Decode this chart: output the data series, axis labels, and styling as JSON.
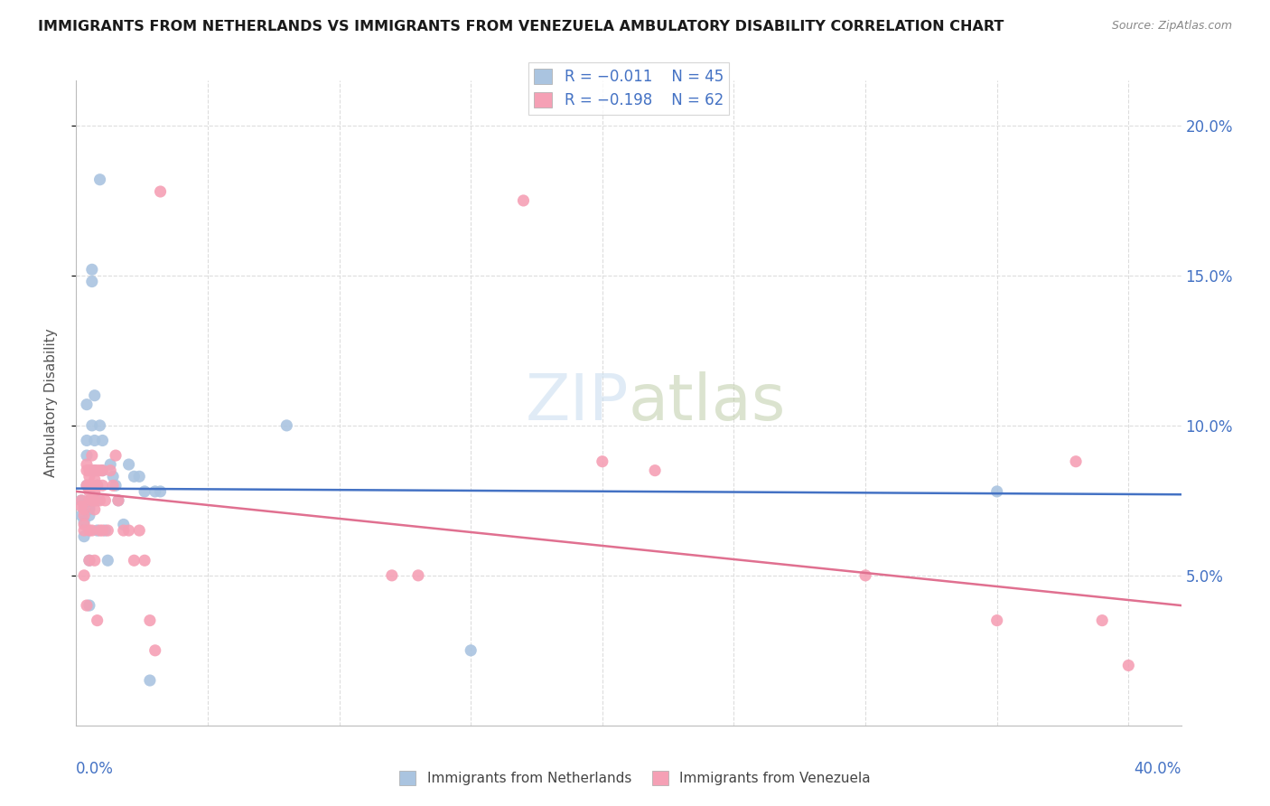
{
  "title": "IMMIGRANTS FROM NETHERLANDS VS IMMIGRANTS FROM VENEZUELA AMBULATORY DISABILITY CORRELATION CHART",
  "source": "Source: ZipAtlas.com",
  "ylabel": "Ambulatory Disability",
  "xlim": [
    0.0,
    0.42
  ],
  "ylim": [
    0.0,
    0.215
  ],
  "yticks": [
    0.05,
    0.1,
    0.15,
    0.2
  ],
  "ytick_labels": [
    "5.0%",
    "10.0%",
    "15.0%",
    "20.0%"
  ],
  "color_netherlands": "#aac4e0",
  "color_venezuela": "#f5a0b5",
  "color_netherlands_line": "#4472c4",
  "color_venezuela_line": "#e07090",
  "color_right_axis": "#4472c4",
  "color_title": "#1a1a1a",
  "background_color": "#ffffff",
  "grid_color": "#dddddd",
  "netherlands_x": [
    0.002,
    0.002,
    0.003,
    0.003,
    0.003,
    0.004,
    0.004,
    0.004,
    0.004,
    0.005,
    0.005,
    0.005,
    0.005,
    0.005,
    0.005,
    0.006,
    0.006,
    0.006,
    0.007,
    0.007,
    0.007,
    0.008,
    0.008,
    0.008,
    0.009,
    0.009,
    0.01,
    0.01,
    0.011,
    0.012,
    0.013,
    0.014,
    0.015,
    0.016,
    0.018,
    0.02,
    0.022,
    0.024,
    0.026,
    0.028,
    0.03,
    0.032,
    0.08,
    0.15,
    0.35
  ],
  "netherlands_y": [
    0.07,
    0.075,
    0.073,
    0.068,
    0.063,
    0.107,
    0.095,
    0.09,
    0.08,
    0.075,
    0.073,
    0.072,
    0.07,
    0.055,
    0.04,
    0.152,
    0.148,
    0.1,
    0.11,
    0.095,
    0.085,
    0.08,
    0.075,
    0.065,
    0.182,
    0.1,
    0.095,
    0.085,
    0.065,
    0.055,
    0.087,
    0.083,
    0.08,
    0.075,
    0.067,
    0.087,
    0.083,
    0.083,
    0.078,
    0.015,
    0.078,
    0.078,
    0.1,
    0.025,
    0.078
  ],
  "venezuela_x": [
    0.002,
    0.002,
    0.003,
    0.003,
    0.003,
    0.003,
    0.003,
    0.004,
    0.004,
    0.004,
    0.004,
    0.005,
    0.005,
    0.005,
    0.005,
    0.005,
    0.005,
    0.005,
    0.006,
    0.006,
    0.006,
    0.006,
    0.006,
    0.007,
    0.007,
    0.007,
    0.007,
    0.007,
    0.007,
    0.008,
    0.008,
    0.008,
    0.009,
    0.009,
    0.009,
    0.01,
    0.01,
    0.01,
    0.011,
    0.012,
    0.013,
    0.014,
    0.015,
    0.016,
    0.018,
    0.02,
    0.022,
    0.024,
    0.026,
    0.028,
    0.03,
    0.032,
    0.12,
    0.13,
    0.17,
    0.2,
    0.22,
    0.3,
    0.35,
    0.38,
    0.39,
    0.4
  ],
  "venezuela_y": [
    0.075,
    0.073,
    0.072,
    0.07,
    0.067,
    0.065,
    0.05,
    0.087,
    0.085,
    0.08,
    0.04,
    0.085,
    0.083,
    0.08,
    0.078,
    0.075,
    0.065,
    0.055,
    0.09,
    0.085,
    0.08,
    0.075,
    0.065,
    0.085,
    0.082,
    0.078,
    0.075,
    0.072,
    0.055,
    0.085,
    0.08,
    0.035,
    0.085,
    0.075,
    0.065,
    0.085,
    0.08,
    0.065,
    0.075,
    0.065,
    0.085,
    0.08,
    0.09,
    0.075,
    0.065,
    0.065,
    0.055,
    0.065,
    0.055,
    0.035,
    0.025,
    0.178,
    0.05,
    0.05,
    0.175,
    0.088,
    0.085,
    0.05,
    0.035,
    0.088,
    0.035,
    0.02
  ],
  "nl_trend_x0": 0.0,
  "nl_trend_x1": 0.42,
  "nl_trend_y0": 0.079,
  "nl_trend_y1": 0.077,
  "ve_trend_x0": 0.0,
  "ve_trend_x1": 0.42,
  "ve_trend_y0": 0.078,
  "ve_trend_y1": 0.04
}
